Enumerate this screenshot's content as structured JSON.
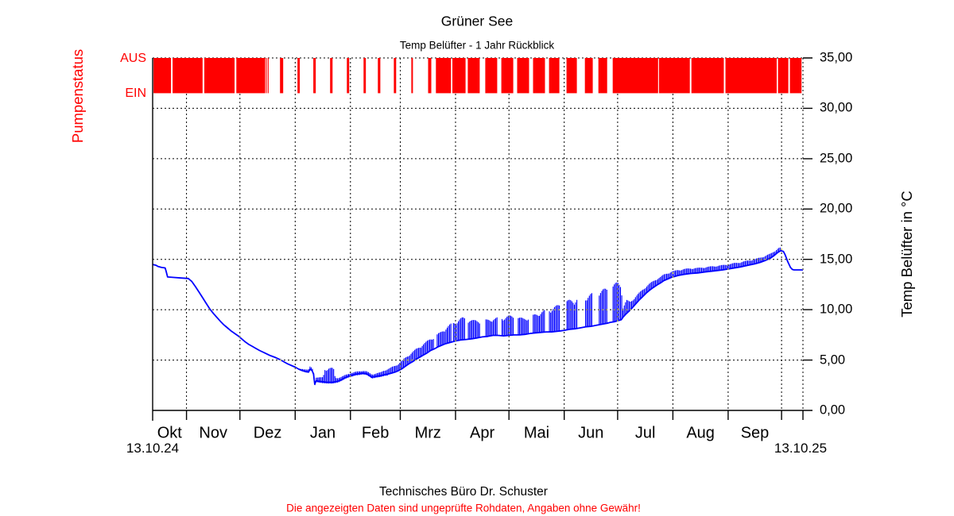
{
  "title": "Grüner See",
  "subtitle": "Temp Belüfter - 1 Jahr Rückblick",
  "footer": {
    "line1": "Technisches Büro Dr. Schuster",
    "line2": "Die angezeigten Daten sind ungeprüfte Rohdaten, Angaben ohne Gewähr!"
  },
  "left_axis": {
    "label": "Pumpenstatus",
    "state_top": "AUS",
    "state_bottom": "EIN",
    "color": "#ff0000"
  },
  "right_axis": {
    "label": "Temp Belüfter in °C",
    "tick_labels": [
      "35,00",
      "30,00",
      "25,00",
      "20,00",
      "15,00",
      "10,00",
      "5,00",
      "0,00"
    ],
    "tick_values": [
      35,
      30,
      25,
      20,
      15,
      10,
      5,
      0
    ]
  },
  "x_axis": {
    "start_label": "13.10.24",
    "end_label": "13.10.25"
  },
  "colors": {
    "pump": "#ff0000",
    "temperature": "#0000ff",
    "axis": "#000000",
    "background": "#ffffff"
  },
  "chart_data": {
    "type": "line",
    "title": "Grüner See",
    "subtitle": "Temp Belüfter - 1 Jahr Rückblick",
    "x_start_date": "13.10.24",
    "x_end_date": "13.10.25",
    "x_unit": "days_since_start",
    "total_days": 365,
    "ylabel": "Temp Belüfter in °C",
    "ylim": [
      0,
      35
    ],
    "y_tick_step": 5,
    "grid": true,
    "month_labels": [
      "Okt",
      "Nov",
      "Dez",
      "Jan",
      "Feb",
      "Mrz",
      "Apr",
      "Mai",
      "Jun",
      "Jul",
      "Aug",
      "Sep"
    ],
    "month_ticks_days": [
      19,
      49,
      80,
      111,
      139,
      170,
      200,
      231,
      261,
      292,
      323,
      353
    ],
    "series": [
      {
        "name": "Temp Belüfter",
        "color": "#0000ff",
        "base_points_day_temp": [
          [
            0,
            14.5
          ],
          [
            2,
            14.4
          ],
          [
            3,
            14.3
          ],
          [
            5,
            14.2
          ],
          [
            7,
            14.15
          ],
          [
            7.6,
            13.8
          ],
          [
            8.4,
            13.25
          ],
          [
            12,
            13.2
          ],
          [
            16,
            13.15
          ],
          [
            20,
            13.1
          ],
          [
            22,
            12.8
          ],
          [
            24,
            12.3
          ],
          [
            26,
            11.75
          ],
          [
            28,
            11.2
          ],
          [
            30,
            10.65
          ],
          [
            32,
            10.1
          ],
          [
            34,
            9.65
          ],
          [
            36,
            9.25
          ],
          [
            38,
            8.85
          ],
          [
            40,
            8.5
          ],
          [
            42,
            8.2
          ],
          [
            44,
            7.9
          ],
          [
            46,
            7.65
          ],
          [
            48,
            7.4
          ],
          [
            50,
            7.1
          ],
          [
            52,
            6.8
          ],
          [
            54,
            6.55
          ],
          [
            56,
            6.35
          ],
          [
            58,
            6.15
          ],
          [
            60,
            5.95
          ],
          [
            63,
            5.7
          ],
          [
            66,
            5.45
          ],
          [
            69,
            5.25
          ],
          [
            72,
            5.0
          ],
          [
            74,
            4.8
          ],
          [
            76,
            4.6
          ],
          [
            78,
            4.45
          ],
          [
            80,
            4.3
          ],
          [
            82,
            4.1
          ],
          [
            84,
            3.95
          ],
          [
            86,
            3.85
          ],
          [
            87.5,
            3.8
          ],
          [
            88.3,
            4.1
          ],
          [
            89.5,
            3.95
          ],
          [
            90.3,
            3.6
          ],
          [
            91,
            2.6
          ],
          [
            91.8,
            2.95
          ],
          [
            93,
            2.9
          ],
          [
            95,
            2.85
          ],
          [
            98,
            2.8
          ],
          [
            101,
            2.8
          ],
          [
            104,
            2.9
          ],
          [
            106,
            3.05
          ],
          [
            108,
            3.25
          ],
          [
            110,
            3.4
          ],
          [
            112,
            3.5
          ],
          [
            114,
            3.6
          ],
          [
            116,
            3.65
          ],
          [
            118,
            3.7
          ],
          [
            120,
            3.65
          ],
          [
            121.5,
            3.5
          ],
          [
            123,
            3.3
          ],
          [
            124.5,
            3.35
          ],
          [
            126,
            3.4
          ],
          [
            128,
            3.45
          ],
          [
            130,
            3.55
          ],
          [
            132,
            3.6
          ],
          [
            134,
            3.7
          ],
          [
            136,
            3.8
          ],
          [
            138,
            3.95
          ],
          [
            140,
            4.15
          ],
          [
            142,
            4.4
          ],
          [
            144,
            4.65
          ],
          [
            146,
            4.85
          ],
          [
            148,
            5.1
          ],
          [
            150,
            5.3
          ],
          [
            152,
            5.5
          ],
          [
            154,
            5.7
          ],
          [
            156,
            5.95
          ],
          [
            158,
            6.1
          ],
          [
            160,
            6.3
          ],
          [
            162,
            6.45
          ],
          [
            164,
            6.6
          ],
          [
            166,
            6.7
          ],
          [
            168,
            6.8
          ],
          [
            170,
            6.9
          ],
          [
            173,
            7.0
          ],
          [
            176,
            7.05
          ],
          [
            179,
            7.1
          ],
          [
            182,
            7.2
          ],
          [
            185,
            7.3
          ],
          [
            188,
            7.35
          ],
          [
            191,
            7.45
          ],
          [
            194,
            7.45
          ],
          [
            197,
            7.4
          ],
          [
            200,
            7.45
          ],
          [
            203,
            7.5
          ],
          [
            206,
            7.5
          ],
          [
            209,
            7.55
          ],
          [
            212,
            7.65
          ],
          [
            215,
            7.7
          ],
          [
            218,
            7.75
          ],
          [
            221,
            7.8
          ],
          [
            224,
            7.8
          ],
          [
            227,
            7.85
          ],
          [
            229,
            7.9
          ],
          [
            231,
            7.95
          ],
          [
            234,
            8.05
          ],
          [
            237,
            8.1
          ],
          [
            240,
            8.2
          ],
          [
            243,
            8.3
          ],
          [
            246,
            8.35
          ],
          [
            249,
            8.45
          ],
          [
            252,
            8.55
          ],
          [
            255,
            8.65
          ],
          [
            257,
            8.75
          ],
          [
            259,
            8.8
          ],
          [
            261,
            8.9
          ],
          [
            263,
            9.0
          ],
          [
            264,
            9.25
          ],
          [
            265.5,
            9.55
          ],
          [
            267,
            9.8
          ],
          [
            269,
            10.15
          ],
          [
            271,
            10.55
          ],
          [
            273,
            10.95
          ],
          [
            275,
            11.3
          ],
          [
            277,
            11.65
          ],
          [
            279,
            11.95
          ],
          [
            281,
            12.2
          ],
          [
            283,
            12.45
          ],
          [
            285,
            12.65
          ],
          [
            287,
            12.9
          ],
          [
            289,
            13.05
          ],
          [
            291,
            13.2
          ],
          [
            293,
            13.3
          ],
          [
            295,
            13.4
          ],
          [
            298,
            13.5
          ],
          [
            302,
            13.6
          ],
          [
            306,
            13.65
          ],
          [
            310,
            13.75
          ],
          [
            315,
            13.85
          ],
          [
            320,
            13.95
          ],
          [
            325,
            14.1
          ],
          [
            330,
            14.25
          ],
          [
            334,
            14.4
          ],
          [
            338,
            14.55
          ],
          [
            341,
            14.7
          ],
          [
            344,
            14.9
          ],
          [
            347,
            15.15
          ],
          [
            349,
            15.4
          ],
          [
            351,
            15.7
          ],
          [
            352.5,
            15.85
          ],
          [
            354,
            15.8
          ],
          [
            355,
            15.45
          ],
          [
            356.5,
            14.75
          ],
          [
            358,
            14.2
          ],
          [
            359,
            14.0
          ],
          [
            360,
            13.95
          ],
          [
            362,
            13.95
          ],
          [
            365,
            13.95
          ]
        ],
        "spike_envelope_day_extra": [
          [
            0,
            0
          ],
          [
            82,
            0
          ],
          [
            84,
            0.2
          ],
          [
            88,
            0.25
          ],
          [
            92,
            0.35
          ],
          [
            95,
            0.45
          ],
          [
            95.8,
            0.5
          ],
          [
            96.5,
            1.35
          ],
          [
            99,
            1.5
          ],
          [
            101.5,
            1.4
          ],
          [
            102.5,
            0.4
          ],
          [
            106,
            0.3
          ],
          [
            110,
            0.25
          ],
          [
            115,
            0.25
          ],
          [
            120,
            0.25
          ],
          [
            125,
            0.3
          ],
          [
            128,
            0.35
          ],
          [
            131,
            0.5
          ],
          [
            134,
            0.6
          ],
          [
            138,
            0.75
          ],
          [
            142,
            0.9
          ],
          [
            146,
            1.0
          ],
          [
            150,
            1.1
          ],
          [
            154,
            1.2
          ],
          [
            158,
            1.25
          ],
          [
            161,
            1.35
          ],
          [
            164,
            1.6
          ],
          [
            168,
            1.9
          ],
          [
            171,
            2.1
          ],
          [
            174,
            2.25
          ],
          [
            177,
            2.1
          ],
          [
            180,
            1.85
          ],
          [
            184,
            1.7
          ],
          [
            188,
            1.7
          ],
          [
            192,
            1.75
          ],
          [
            196,
            1.9
          ],
          [
            200,
            2.0
          ],
          [
            204,
            1.85
          ],
          [
            208,
            1.65
          ],
          [
            212,
            1.7
          ],
          [
            216,
            2.0
          ],
          [
            220,
            2.2
          ],
          [
            224,
            2.45
          ],
          [
            228,
            2.65
          ],
          [
            231,
            2.85
          ],
          [
            235,
            3.0
          ],
          [
            239,
            3.15
          ],
          [
            243,
            3.2
          ],
          [
            247,
            3.3
          ],
          [
            251,
            3.4
          ],
          [
            255,
            3.55
          ],
          [
            258,
            3.7
          ],
          [
            261,
            3.9
          ],
          [
            263,
            3.85
          ],
          [
            264,
            1.0
          ],
          [
            266,
            1.35
          ],
          [
            268,
            0.85
          ],
          [
            272,
            0.75
          ],
          [
            277,
            0.7
          ],
          [
            283,
            0.65
          ],
          [
            290,
            0.6
          ],
          [
            300,
            0.55
          ],
          [
            310,
            0.5
          ],
          [
            320,
            0.5
          ],
          [
            330,
            0.5
          ],
          [
            340,
            0.5
          ],
          [
            348,
            0.45
          ],
          [
            352,
            0.4
          ],
          [
            353,
            0.2
          ],
          [
            354,
            0
          ],
          [
            365,
            0
          ]
        ]
      }
    ],
    "pump_status": {
      "label": "Pumpenstatus",
      "states": [
        "AUS",
        "EIN"
      ],
      "color": "#ff0000",
      "segments_days": [
        [
          0.5,
          10.3
        ],
        [
          11.2,
          28.0
        ],
        [
          29.0,
          46.0
        ],
        [
          47.0,
          63.2
        ],
        [
          63.6,
          64.1
        ],
        [
          64.6,
          65.1
        ],
        [
          71.5,
          73.3
        ],
        [
          81.3,
          82.6
        ],
        [
          90.2,
          91.6
        ],
        [
          99.6,
          101.0
        ],
        [
          109.0,
          110.3
        ],
        [
          118.4,
          119.7
        ],
        [
          126.4,
          127.8
        ],
        [
          135.4,
          136.7
        ],
        [
          145.2,
          146.1
        ],
        [
          154.6,
          156.4
        ],
        [
          159.0,
          167.5
        ],
        [
          168.2,
          175.6
        ],
        [
          176.9,
          183.6
        ],
        [
          186.7,
          193.4
        ],
        [
          195.7,
          202.4
        ],
        [
          204.6,
          211.3
        ],
        [
          213.5,
          220.2
        ],
        [
          222.5,
          228.3
        ],
        [
          232.3,
          238.1
        ],
        [
          242.6,
          247.0
        ],
        [
          250.2,
          255.1
        ],
        [
          258.2,
          283.7
        ],
        [
          284.2,
          301.5
        ],
        [
          302.4,
          320.6
        ],
        [
          321.5,
          350.3
        ],
        [
          351.0,
          356.8
        ],
        [
          357.7,
          364.2
        ]
      ]
    }
  }
}
